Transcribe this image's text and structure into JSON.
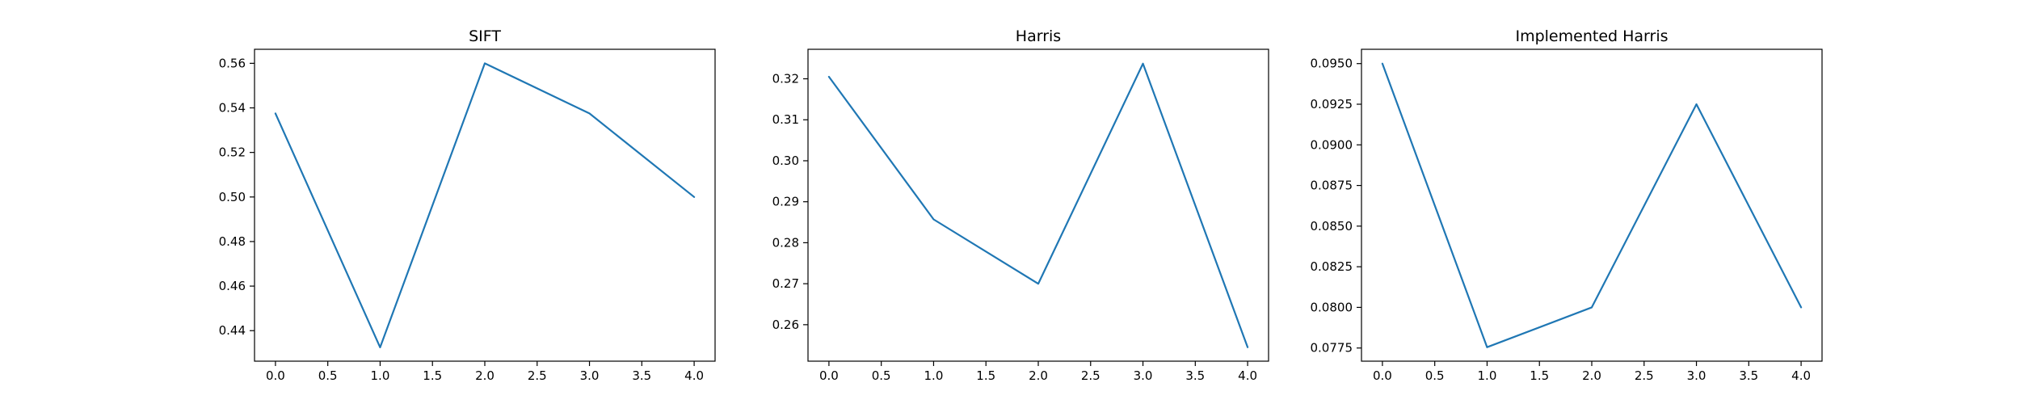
{
  "colors": {
    "series": "#1f77b4",
    "axes": "#000000",
    "background": "#ffffff"
  },
  "chart_data": [
    {
      "type": "line",
      "title": "SIFT",
      "xlabel": "",
      "ylabel": "",
      "x": [
        0,
        1,
        2,
        3,
        4
      ],
      "series": [
        {
          "values": [
            0.5375,
            0.4325,
            0.56,
            0.5375,
            0.5
          ]
        }
      ],
      "xlim": [
        -0.2,
        4.2
      ],
      "ylim": [
        0.4263,
        0.5663
      ],
      "xticks": [
        0,
        0.5,
        1,
        1.5,
        2,
        2.5,
        3,
        3.5,
        4
      ],
      "xtick_labels": [
        "0.0",
        "0.5",
        "1.0",
        "1.5",
        "2.0",
        "2.5",
        "3.0",
        "3.5",
        "4.0"
      ],
      "yticks": [
        0.44,
        0.46,
        0.48,
        0.5,
        0.52,
        0.54,
        0.56
      ],
      "ytick_labels": [
        "0.44",
        "0.46",
        "0.48",
        "0.50",
        "0.52",
        "0.54",
        "0.56"
      ],
      "grid": false,
      "legend": false
    },
    {
      "type": "line",
      "title": "Harris",
      "xlabel": "",
      "ylabel": "",
      "x": [
        0,
        1,
        2,
        3,
        4
      ],
      "series": [
        {
          "values": [
            0.3205,
            0.2857,
            0.27,
            0.3237,
            0.2545
          ]
        }
      ],
      "xlim": [
        -0.2,
        4.2
      ],
      "ylim": [
        0.2511,
        0.3272
      ],
      "xticks": [
        0,
        0.5,
        1,
        1.5,
        2,
        2.5,
        3,
        3.5,
        4
      ],
      "xtick_labels": [
        "0.0",
        "0.5",
        "1.0",
        "1.5",
        "2.0",
        "2.5",
        "3.0",
        "3.5",
        "4.0"
      ],
      "yticks": [
        0.26,
        0.27,
        0.28,
        0.29,
        0.3,
        0.31,
        0.32
      ],
      "ytick_labels": [
        "0.26",
        "0.27",
        "0.28",
        "0.29",
        "0.30",
        "0.31",
        "0.32"
      ],
      "grid": false,
      "legend": false
    },
    {
      "type": "line",
      "title": "Implemented Harris",
      "xlabel": "",
      "ylabel": "",
      "x": [
        0,
        1,
        2,
        3,
        4
      ],
      "series": [
        {
          "values": [
            0.095,
            0.07755,
            0.08,
            0.0925,
            0.08
          ]
        }
      ],
      "xlim": [
        -0.2,
        4.2
      ],
      "ylim": [
        0.07669,
        0.09588
      ],
      "xticks": [
        0,
        0.5,
        1,
        1.5,
        2,
        2.5,
        3,
        3.5,
        4
      ],
      "xtick_labels": [
        "0.0",
        "0.5",
        "1.0",
        "1.5",
        "2.0",
        "2.5",
        "3.0",
        "3.5",
        "4.0"
      ],
      "yticks": [
        0.0775,
        0.08,
        0.0825,
        0.085,
        0.0875,
        0.09,
        0.0925,
        0.095
      ],
      "ytick_labels": [
        "0.0775",
        "0.0800",
        "0.0825",
        "0.0850",
        "0.0875",
        "0.0900",
        "0.0925",
        "0.0950"
      ],
      "grid": false,
      "legend": false
    }
  ]
}
